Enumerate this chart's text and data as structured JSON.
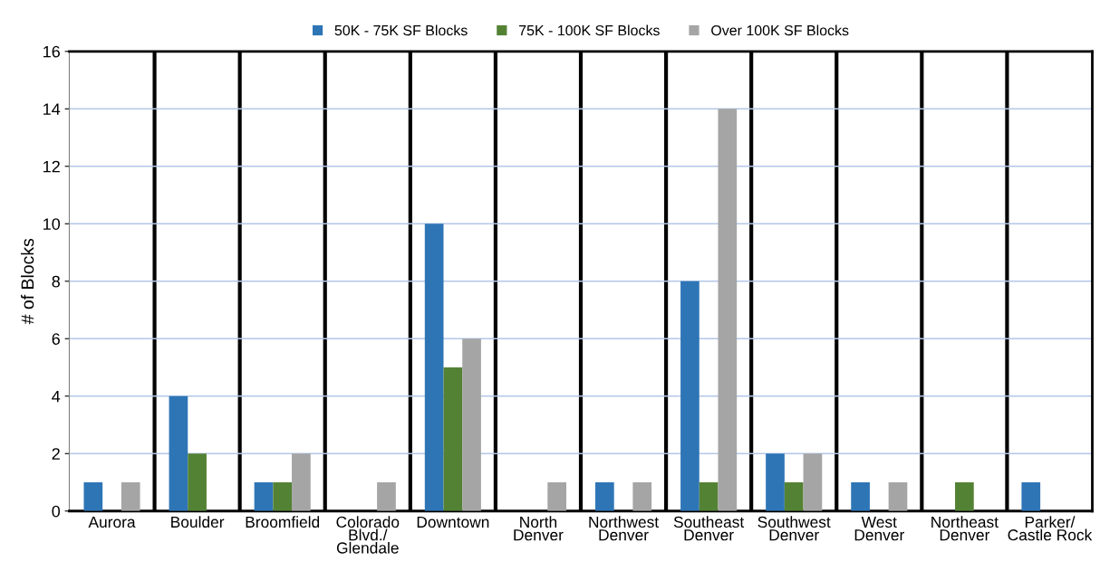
{
  "chart_data": {
    "type": "bar",
    "ylabel": "# of Blocks",
    "categories": [
      "Aurora",
      "Boulder",
      "Broomfield",
      "Colorado\nBlvd./\nGlendale",
      "Downtown",
      "North\nDenver",
      "Northwest\nDenver",
      "Southeast\nDenver",
      "Southwest\nDenver",
      "West\nDenver",
      "Northeast\nDenver",
      "Parker/\nCastle Rock"
    ],
    "series": [
      {
        "name": "50K - 75K SF Blocks",
        "color": "#2e75b6",
        "values": [
          1,
          4,
          1,
          0,
          10,
          0,
          1,
          8,
          2,
          1,
          0,
          1
        ]
      },
      {
        "name": "75K - 100K SF Blocks",
        "color": "#548235",
        "values": [
          0,
          2,
          1,
          0,
          5,
          0,
          0,
          1,
          1,
          0,
          1,
          0
        ]
      },
      {
        "name": "Over 100K SF Blocks",
        "color": "#a5a5a5",
        "values": [
          1,
          0,
          2,
          1,
          6,
          1,
          1,
          14,
          2,
          1,
          0,
          0
        ]
      }
    ],
    "ylim": [
      0,
      16
    ],
    "yticks": [
      0,
      2,
      4,
      6,
      8,
      10,
      12,
      14,
      16
    ],
    "grid": true,
    "legend": "top"
  }
}
